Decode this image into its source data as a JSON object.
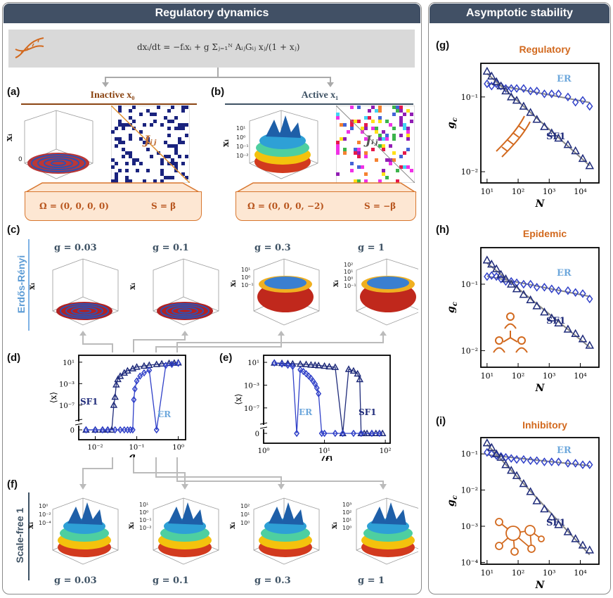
{
  "left_header": "Regulatory dynamics",
  "right_header": "Asymptotic stability",
  "equation": {
    "lhs": "dxᵢ/dt",
    "rhs": "= −fᵢxᵢ + g Σⱼ₌₁ᴺ AᵢⱼGᵢⱼ xⱼ/(1 + xⱼ)"
  },
  "panels": {
    "a": {
      "label": "(a)",
      "title": "Inactive x₀",
      "jij": "Jᵢⱼ",
      "omega": "Ω = (0, 0, 0, 0)",
      "s": "S = β",
      "ylab": "xᵢ",
      "tick0": "0"
    },
    "b": {
      "label": "(b)",
      "title": "Active x₁",
      "jij": "Jᵢⱼ",
      "omega": "Ω = (0, 0, 0, −2)",
      "s": "S = −β",
      "ylab": "xᵢ",
      "ticks": [
        "10¹",
        "10⁰",
        "10⁻¹",
        "10⁻²"
      ]
    },
    "c": {
      "label": "(c)",
      "side": "Erdős-Rényi",
      "g_labels": [
        "g = 0.03",
        "g = 0.1",
        "g = 0.3",
        "g = 1"
      ],
      "ylab": "xᵢ",
      "ticks3": [
        "10¹",
        "10⁰",
        "10⁻¹"
      ],
      "ticks4": [
        "10²",
        "10¹",
        "10⁰",
        "10⁻¹"
      ]
    },
    "d": {
      "label": "(d)"
    },
    "e": {
      "label": "(e)"
    },
    "f": {
      "label": "(f)",
      "side": "Scale-free 1",
      "g_labels": [
        "g = 0.03",
        "g = 0.1",
        "g = 0.3",
        "g = 1"
      ],
      "ylab": "xᵢ",
      "ticks": [
        [
          "10⁰",
          "10⁻²",
          "10⁻⁴"
        ],
        [
          "10¹",
          "10⁰",
          "10⁻¹",
          "10⁻²"
        ],
        [
          "10²",
          "10¹",
          "10⁰"
        ],
        [
          "10³",
          "10²",
          "10¹",
          "10⁰"
        ]
      ]
    },
    "g": {
      "label": "(g)",
      "title": "Regulatory"
    },
    "h": {
      "label": "(h)",
      "title": "Epidemic"
    },
    "i": {
      "label": "(i)",
      "title": "Inhibitory"
    }
  },
  "chart_data": [
    {
      "id": "d",
      "type": "line",
      "xscale": "log",
      "yscale": "symlog",
      "xlabel": "g",
      "ylabel": "⟨x⟩",
      "xticks": [
        "10⁻²",
        "10⁻¹",
        "10⁰"
      ],
      "yticks": [
        "10¹",
        "10⁻³",
        "10⁻⁷",
        "0"
      ],
      "xlim": [
        0.004,
        1.5
      ],
      "ylog_range": [
        -9,
        1.5
      ],
      "series": [
        {
          "name": "SF1",
          "marker": "triangle",
          "color": "#1f2b7a",
          "x": [
            0.006,
            0.01,
            0.015,
            0.02,
            0.025,
            0.028,
            0.03,
            0.032,
            0.035,
            0.04,
            0.05,
            0.06,
            0.08,
            0.1,
            0.15,
            0.2,
            0.3,
            0.4,
            0.6,
            0.8,
            1.0
          ],
          "y": [
            0,
            0,
            0,
            0,
            0,
            -7,
            -5.5,
            -3.2,
            -2.2,
            -1.6,
            -1.0,
            -0.6,
            -0.2,
            0.1,
            0.3,
            0.45,
            0.6,
            0.7,
            0.8,
            0.85,
            0.9
          ]
        },
        {
          "name": "ER",
          "marker": "diamond",
          "color": "#3040c8",
          "x": [
            0.006,
            0.01,
            0.015,
            0.02,
            0.03,
            0.04,
            0.05,
            0.06,
            0.07,
            0.08,
            0.085,
            0.09,
            0.1,
            0.12,
            0.15,
            0.2,
            0.3,
            0.5,
            0.7,
            1.0
          ],
          "y": [
            0,
            0,
            0,
            0,
            0,
            0,
            0,
            0,
            0,
            0,
            -6,
            -4,
            -2.5,
            -1.6,
            -1.0,
            -0.5,
            0,
            0.4,
            0.6,
            0.8
          ]
        }
      ],
      "labels": {
        "SF1": "SF1",
        "ER": "ER"
      }
    },
    {
      "id": "e",
      "type": "line",
      "xscale": "log",
      "yscale": "symlog",
      "xlabel": "⟨f⟩",
      "ylabel": "⟨x⟩",
      "xticks": [
        "10⁰",
        "10¹",
        "10²"
      ],
      "yticks": [
        "10¹",
        "10⁻³",
        "10⁻⁷",
        "0"
      ],
      "xlim": [
        1,
        120
      ],
      "ylog_range": [
        -9,
        1.5
      ],
      "series": [
        {
          "name": "SF1",
          "marker": "triangle",
          "color": "#1f2b7a",
          "x": [
            1.5,
            2,
            2.5,
            3,
            4,
            5,
            6,
            7,
            8,
            10,
            12,
            15,
            20,
            25,
            30,
            35,
            38,
            40,
            45,
            50,
            60,
            70,
            80,
            90
          ],
          "y": [
            0.9,
            0.85,
            0.8,
            0.75,
            0.7,
            0.65,
            0.55,
            0.5,
            0.45,
            0.35,
            0.25,
            0.15,
            0,
            -0.2,
            -0.5,
            -1.0,
            -2.0,
            0,
            0,
            0,
            0,
            0,
            0,
            0
          ]
        },
        {
          "name": "ER",
          "marker": "diamond",
          "color": "#3040c8",
          "x": [
            1.5,
            2,
            2.5,
            3,
            3.5,
            4,
            4.5,
            5,
            5.5,
            6,
            6.5,
            7,
            7.5,
            8,
            9,
            10,
            15,
            20,
            30,
            40,
            60,
            80
          ],
          "y": [
            0.9,
            0.7,
            0.5,
            0.3,
            0.0,
            -0.3,
            -0.6,
            -1.0,
            -1.4,
            -1.8,
            -2.3,
            -2.8,
            -3.5,
            -4.5,
            0,
            0,
            0,
            0,
            0,
            0,
            0,
            0
          ]
        }
      ],
      "labels": {
        "SF1": "SF1",
        "ER": "ER"
      }
    },
    {
      "id": "g",
      "title": "Regulatory",
      "type": "scatter",
      "xscale": "log",
      "yscale": "log",
      "xlabel": "N",
      "ylabel": "g_c",
      "xticks": [
        "10¹",
        "10²",
        "10³",
        "10⁴"
      ],
      "yticks": [
        "10⁻¹",
        "10⁻²"
      ],
      "xlog_range": [
        0.8,
        4.6
      ],
      "ylog_range": [
        -2.15,
        -0.55
      ],
      "series": [
        {
          "name": "ER",
          "marker": "diamond",
          "color": "#3040c8",
          "x": [
            10,
            14,
            20,
            28,
            40,
            60,
            90,
            150,
            250,
            400,
            700,
            1200,
            2000,
            4000,
            7000,
            12000,
            20000
          ],
          "y": [
            0.15,
            0.14,
            0.15,
            0.14,
            0.13,
            0.13,
            0.13,
            0.13,
            0.12,
            0.12,
            0.11,
            0.11,
            0.11,
            0.1,
            0.085,
            0.09,
            0.075
          ]
        },
        {
          "name": "SF1",
          "marker": "triangle",
          "color": "#1f2b7a",
          "x": [
            10,
            14,
            20,
            28,
            40,
            60,
            90,
            150,
            250,
            400,
            700,
            1200,
            2000,
            4000,
            7000,
            12000,
            20000
          ],
          "y": [
            0.22,
            0.19,
            0.16,
            0.14,
            0.12,
            0.1,
            0.09,
            0.075,
            0.062,
            0.05,
            0.04,
            0.033,
            0.028,
            0.023,
            0.019,
            0.015,
            0.012
          ]
        }
      ],
      "labels": {
        "ER": "ER",
        "SF1": "SF1"
      }
    },
    {
      "id": "h",
      "title": "Epidemic",
      "type": "scatter",
      "xscale": "log",
      "yscale": "log",
      "xlabel": "N",
      "ylabel": "g_c",
      "xticks": [
        "10¹",
        "10²",
        "10³",
        "10⁴"
      ],
      "yticks": [
        "10⁻¹",
        "10⁻²"
      ],
      "xlog_range": [
        0.8,
        4.6
      ],
      "ylog_range": [
        -2.25,
        -0.45
      ],
      "series": [
        {
          "name": "ER",
          "marker": "diamond",
          "color": "#3040c8",
          "x": [
            10,
            14,
            20,
            28,
            40,
            60,
            90,
            150,
            250,
            400,
            700,
            1200,
            2000,
            4000,
            7000,
            12000,
            20000
          ],
          "y": [
            0.13,
            0.135,
            0.13,
            0.12,
            0.11,
            0.11,
            0.105,
            0.1,
            0.1,
            0.09,
            0.09,
            0.085,
            0.08,
            0.08,
            0.075,
            0.072,
            0.06
          ]
        },
        {
          "name": "SF1",
          "marker": "triangle",
          "color": "#1f2b7a",
          "x": [
            10,
            14,
            20,
            28,
            40,
            60,
            90,
            150,
            250,
            400,
            700,
            1200,
            2000,
            4000,
            7000,
            12000,
            20000
          ],
          "y": [
            0.23,
            0.2,
            0.17,
            0.14,
            0.12,
            0.1,
            0.085,
            0.07,
            0.058,
            0.047,
            0.038,
            0.031,
            0.026,
            0.021,
            0.018,
            0.015,
            0.012
          ]
        }
      ],
      "labels": {
        "ER": "ER",
        "SF1": "SF1"
      }
    },
    {
      "id": "i",
      "title": "Inhibitory",
      "type": "scatter",
      "xscale": "log",
      "yscale": "log",
      "xlabel": "N",
      "ylabel": "g_c",
      "xticks": [
        "10¹",
        "10²",
        "10³",
        "10⁴"
      ],
      "yticks": [
        "10⁻¹",
        "10⁻²",
        "10⁻³",
        "10⁻⁴"
      ],
      "xlog_range": [
        0.8,
        4.6
      ],
      "ylog_range": [
        -4.05,
        -0.55
      ],
      "series": [
        {
          "name": "ER",
          "marker": "diamond",
          "color": "#3040c8",
          "x": [
            10,
            14,
            20,
            28,
            40,
            60,
            90,
            150,
            250,
            400,
            700,
            1200,
            2000,
            4000,
            7000,
            12000,
            20000
          ],
          "y": [
            0.11,
            0.1,
            0.09,
            0.085,
            0.08,
            0.075,
            0.07,
            0.07,
            0.065,
            0.065,
            0.06,
            0.06,
            0.06,
            0.055,
            0.055,
            0.05,
            0.05
          ]
        },
        {
          "name": "SF1",
          "marker": "triangle",
          "color": "#1f2b7a",
          "x": [
            10,
            14,
            20,
            28,
            40,
            60,
            90,
            150,
            250,
            400,
            700,
            1200,
            2000,
            4000,
            7000,
            12000,
            20000
          ],
          "y": [
            0.2,
            0.15,
            0.1,
            0.08,
            0.05,
            0.035,
            0.025,
            0.015,
            0.009,
            0.005,
            0.003,
            0.0018,
            0.0011,
            0.0007,
            0.00045,
            0.0003,
            0.00022
          ]
        }
      ],
      "labels": {
        "ER": "ER",
        "SF1": "SF1"
      }
    }
  ],
  "colors": {
    "navy": "#1f2b7a",
    "blue": "#3040c8",
    "lightblue": "#6ea8dc",
    "orange": "#d2691e",
    "header": "#415065"
  }
}
